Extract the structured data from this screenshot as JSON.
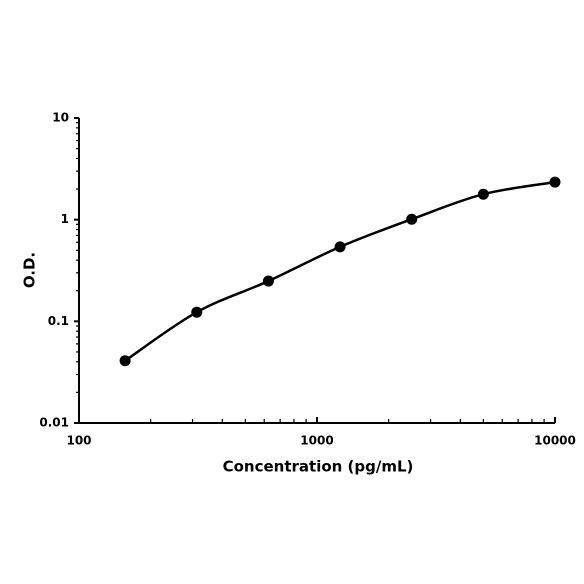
{
  "chart_data": {
    "type": "line",
    "x_label": "Concentration (pg/mL)",
    "y_label": "O.D.",
    "x": [
      156.25,
      312.5,
      625,
      1250,
      2500,
      5000,
      10000
    ],
    "values": [
      0.041,
      0.123,
      0.249,
      0.54,
      1.01,
      1.78,
      2.34
    ],
    "color": "#000000",
    "xlog": true,
    "ylog": true,
    "smooth": true,
    "markers": true,
    "xlim": [
      100,
      10000
    ],
    "xticks": [
      100,
      1000,
      10000
    ],
    "ylim": [
      0.01,
      10
    ],
    "yticks": [
      0.01,
      0.1,
      1,
      10
    ]
  }
}
